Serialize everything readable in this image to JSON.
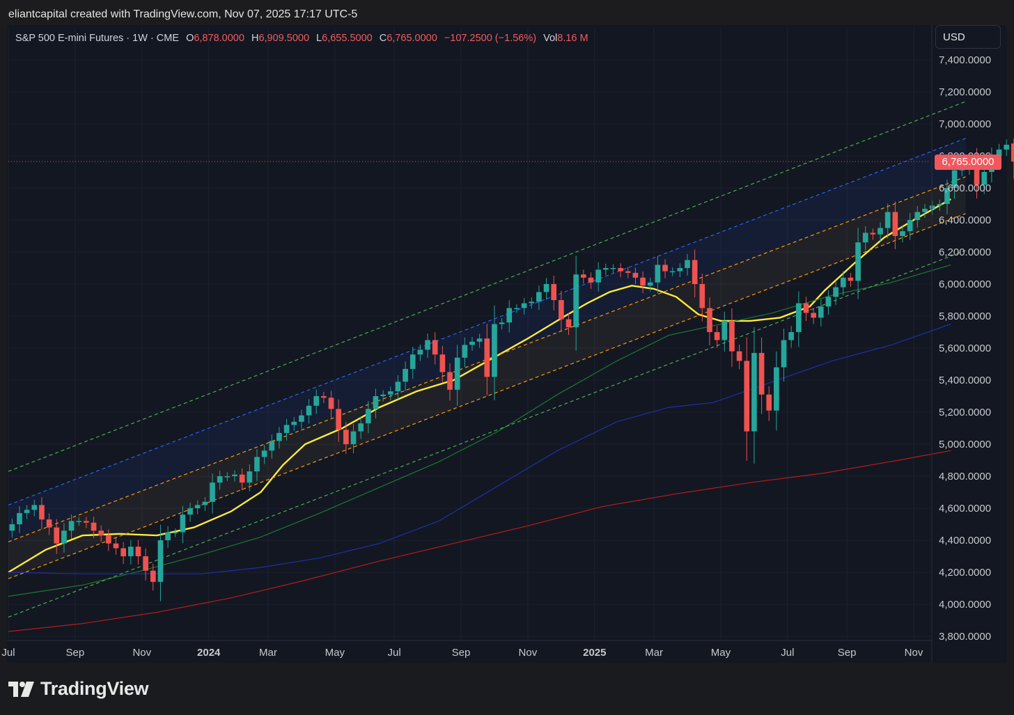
{
  "header": {
    "attribution": "eliantcapital created with TradingView.com, Nov 07, 2025 17:17 UTC-5"
  },
  "legend": {
    "symbol": "S&P 500 E-mini Futures · 1W · CME",
    "open_label": "O",
    "open": "6,878.0000",
    "high_label": "H",
    "high": "6,909.5000",
    "low_label": "L",
    "low": "6,655.5000",
    "close_label": "C",
    "close": "6,765.0000",
    "change": "−107.2500 (−1.56%)",
    "vol_label": "Vol",
    "vol": "8.16 M"
  },
  "currency": "USD",
  "last_price_label": "6,765.0000",
  "footer": {
    "brand": "TradingView"
  },
  "colors": {
    "up": "#26a69a",
    "down": "#ef5350",
    "ma_yellow": "#ffeb3b",
    "ma_green": "#1b7a2e",
    "ma_blue": "#1f2fa8",
    "ma_red": "#b71c1c",
    "chan_outer": "#4caf50",
    "chan_upper": "#2962ff",
    "chan_mid": "#ff9800"
  },
  "chart_data": {
    "type": "candlestick",
    "title": "S&P 500 E-mini Futures · 1W · CME",
    "xlabel": "",
    "ylabel": "",
    "ylim": [
      3780,
      7500
    ],
    "y_ticks": [
      "7,400.0000",
      "7,200.0000",
      "7,000.0000",
      "6,800.0000",
      "6,600.0000",
      "6,400.0000",
      "6,200.0000",
      "6,000.0000",
      "5,800.0000",
      "5,600.0000",
      "5,400.0000",
      "5,200.0000",
      "5,000.0000",
      "4,800.0000",
      "4,600.0000",
      "4,400.0000",
      "4,200.0000",
      "4,000.0000",
      "3,800.0000"
    ],
    "x_ticks": [
      {
        "label": "Jul",
        "week": 0,
        "bold": false
      },
      {
        "label": "Sep",
        "week": 9,
        "bold": false
      },
      {
        "label": "Nov",
        "week": 18,
        "bold": false
      },
      {
        "label": "2024",
        "week": 27,
        "bold": true
      },
      {
        "label": "Mar",
        "week": 35,
        "bold": false
      },
      {
        "label": "May",
        "week": 44,
        "bold": false
      },
      {
        "label": "Jul",
        "week": 52,
        "bold": false
      },
      {
        "label": "Sep",
        "week": 61,
        "bold": false
      },
      {
        "label": "Nov",
        "week": 70,
        "bold": false
      },
      {
        "label": "2025",
        "week": 79,
        "bold": true
      },
      {
        "label": "Mar",
        "week": 87,
        "bold": false
      },
      {
        "label": "May",
        "week": 96,
        "bold": false
      },
      {
        "label": "Jul",
        "week": 105,
        "bold": false
      },
      {
        "label": "Sep",
        "week": 113,
        "bold": false
      },
      {
        "label": "Nov",
        "week": 122,
        "bold": false
      }
    ],
    "candle_start_week": 0.5,
    "closes": [
      4500,
      4570,
      4590,
      4620,
      4530,
      4480,
      4380,
      4460,
      4520,
      4520,
      4510,
      4460,
      4430,
      4380,
      4350,
      4300,
      4360,
      4300,
      4210,
      4140,
      4400,
      4450,
      4450,
      4560,
      4600,
      4620,
      4640,
      4760,
      4800,
      4800,
      4810,
      4760,
      4830,
      4920,
      4960,
      5020,
      5070,
      5120,
      5140,
      5180,
      5240,
      5300,
      5290,
      5220,
      5090,
      5000,
      5080,
      5130,
      5220,
      5300,
      5310,
      5330,
      5390,
      5470,
      5560,
      5590,
      5650,
      5560,
      5450,
      5340,
      5540,
      5620,
      5640,
      5660,
      5420,
      5750,
      5760,
      5850,
      5850,
      5880,
      5890,
      5950,
      6000,
      5900,
      5780,
      5730,
      6060,
      6040,
      6010,
      6090,
      6100,
      6100,
      6080,
      6070,
      6040,
      5990,
      6010,
      6120,
      6080,
      6080,
      6100,
      6150,
      6000,
      5850,
      5700,
      5650,
      5770,
      5580,
      5520,
      5080,
      5570,
      5310,
      5210,
      5480,
      5650,
      5700,
      5880,
      5820,
      5790,
      5860,
      5920,
      5980,
      6040,
      6020,
      6260,
      6320,
      6310,
      6350,
      6450,
      6300,
      6330,
      6400,
      6450,
      6470,
      6490,
      6500,
      6600,
      6710,
      6730,
      6780,
      6620,
      6700,
      6800,
      6840,
      6870,
      6765
    ],
    "opens_from_prev_close": true,
    "last_candle": {
      "open": 6878,
      "high": 6909.5,
      "low": 6655.5,
      "close": 6765
    },
    "last_price": 6765,
    "overlays": [
      {
        "name": "",
        "style": "solid",
        "color": "#ffeb3b",
        "points": [
          [
            0,
            4200
          ],
          [
            5,
            4340
          ],
          [
            10,
            4430
          ],
          [
            15,
            4440
          ],
          [
            20,
            4430
          ],
          [
            25,
            4480
          ],
          [
            30,
            4580
          ],
          [
            34,
            4700
          ],
          [
            37,
            4870
          ],
          [
            40,
            5000
          ],
          [
            45,
            5100
          ],
          [
            50,
            5230
          ],
          [
            55,
            5330
          ],
          [
            60,
            5400
          ],
          [
            65,
            5530
          ],
          [
            70,
            5660
          ],
          [
            75,
            5800
          ],
          [
            78,
            5880
          ],
          [
            81,
            5950
          ],
          [
            84,
            5990
          ],
          [
            87,
            5970
          ],
          [
            90,
            5920
          ],
          [
            93,
            5810
          ],
          [
            96,
            5770
          ],
          [
            100,
            5770
          ],
          [
            104,
            5790
          ],
          [
            108,
            5860
          ],
          [
            110,
            5960
          ],
          [
            114,
            6130
          ],
          [
            118,
            6290
          ],
          [
            122,
            6400
          ],
          [
            127,
            6530
          ]
        ]
      },
      {
        "name": "",
        "style": "solid",
        "color": "#1b7a2e",
        "points": [
          [
            0,
            4050
          ],
          [
            10,
            4120
          ],
          [
            18,
            4210
          ],
          [
            26,
            4310
          ],
          [
            34,
            4420
          ],
          [
            42,
            4570
          ],
          [
            50,
            4730
          ],
          [
            58,
            4890
          ],
          [
            66,
            5080
          ],
          [
            74,
            5310
          ],
          [
            82,
            5520
          ],
          [
            89,
            5680
          ],
          [
            95,
            5740
          ],
          [
            103,
            5820
          ],
          [
            111,
            5930
          ],
          [
            119,
            6010
          ],
          [
            127,
            6120
          ]
        ]
      },
      {
        "name": "",
        "style": "solid",
        "color": "#1f2fa8",
        "points": [
          [
            0,
            4200
          ],
          [
            10,
            4190
          ],
          [
            18,
            4190
          ],
          [
            26,
            4190
          ],
          [
            34,
            4230
          ],
          [
            42,
            4290
          ],
          [
            50,
            4380
          ],
          [
            58,
            4520
          ],
          [
            66,
            4740
          ],
          [
            74,
            4960
          ],
          [
            82,
            5140
          ],
          [
            89,
            5230
          ],
          [
            95,
            5260
          ],
          [
            103,
            5390
          ],
          [
            111,
            5520
          ],
          [
            119,
            5620
          ],
          [
            127,
            5750
          ]
        ]
      },
      {
        "name": "",
        "style": "solid",
        "color": "#b71c1c",
        "points": [
          [
            0,
            3830
          ],
          [
            10,
            3880
          ],
          [
            20,
            3950
          ],
          [
            30,
            4040
          ],
          [
            40,
            4150
          ],
          [
            50,
            4270
          ],
          [
            60,
            4380
          ],
          [
            70,
            4490
          ],
          [
            80,
            4610
          ],
          [
            90,
            4690
          ],
          [
            100,
            4760
          ],
          [
            110,
            4820
          ],
          [
            120,
            4900
          ],
          [
            127,
            4960
          ]
        ]
      },
      {
        "name": "",
        "style": "dashed",
        "color": "#4caf50",
        "points": [
          [
            0,
            4830
          ],
          [
            129,
            7140
          ]
        ]
      },
      {
        "name": "",
        "style": "dashed",
        "color": "#2962ff",
        "points": [
          [
            0,
            4620
          ],
          [
            129,
            6910
          ]
        ]
      },
      {
        "name": "",
        "style": "dashed",
        "color": "#ff9800",
        "points": [
          [
            0,
            4390
          ],
          [
            129,
            6670
          ]
        ]
      },
      {
        "name": "",
        "style": "dashed",
        "color": "#ff9800",
        "points": [
          [
            0,
            4160
          ],
          [
            129,
            6440
          ]
        ]
      },
      {
        "name": "",
        "style": "dashed",
        "color": "#4caf50",
        "points": [
          [
            0,
            3920
          ],
          [
            129,
            6210
          ]
        ]
      }
    ]
  }
}
